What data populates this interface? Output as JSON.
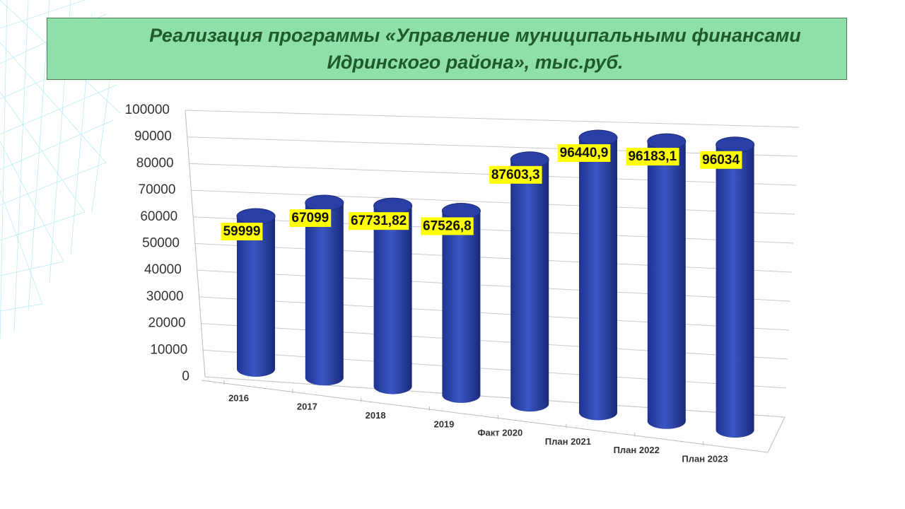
{
  "chart_data": {
    "type": "bar",
    "title": "Реализация программы «Управление муниципальными финансами Идринского района», тыс.руб.",
    "categories": [
      "2016",
      "2017",
      "2018",
      "2019",
      "Факт 2020",
      "План 2021",
      "План 2022",
      "План 2023"
    ],
    "values": [
      59999,
      67099,
      67731.82,
      67526.8,
      87603.3,
      96440.9,
      96183.1,
      96034
    ],
    "value_labels": [
      "59999",
      "67099",
      "67731,82",
      "67526,8",
      "87603,3",
      "96440,9",
      "96183,1",
      "96034"
    ],
    "color": "#2c45b0",
    "ylim": [
      0,
      100000
    ],
    "yticks": [
      0,
      10000,
      20000,
      30000,
      40000,
      50000,
      60000,
      70000,
      80000,
      90000,
      100000
    ],
    "grid": true
  }
}
